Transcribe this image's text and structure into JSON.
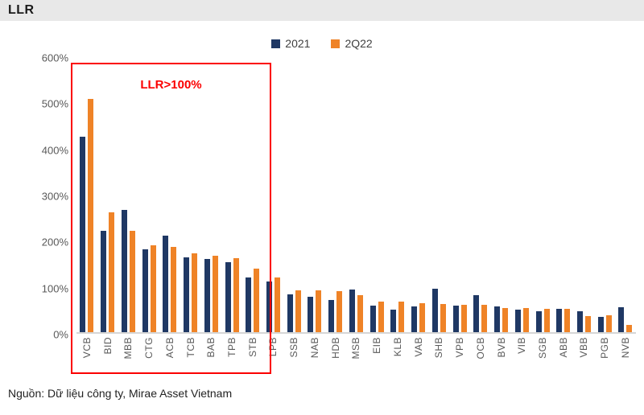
{
  "header": {
    "title": "LLR"
  },
  "source": {
    "text": "Nguồn: Dữ liệu công ty, Mirae Asset Vietnam"
  },
  "colors": {
    "series_2021": "#1f3864",
    "series_2q22": "#ef8327",
    "highlight_red": "#fb0000",
    "header_bg": "#e8e8e8",
    "axis_text": "#595959"
  },
  "chart_data": {
    "type": "bar",
    "title": "LLR",
    "categories": [
      "VCB",
      "BID",
      "MBB",
      "CTG",
      "ACB",
      "TCB",
      "BAB",
      "TPB",
      "STB",
      "LPB",
      "SSB",
      "NAB",
      "HDB",
      "MSB",
      "EIB",
      "KLB",
      "VAB",
      "SHB",
      "VPB",
      "OCB",
      "BVB",
      "VIB",
      "SGB",
      "ABB",
      "VBB",
      "PGB",
      "NVB"
    ],
    "series": [
      {
        "name": "2021",
        "color": "#1f3864",
        "values": [
          424,
          219,
          265,
          180,
          209,
          163,
          159,
          152,
          119,
          110,
          82,
          77,
          70,
          92,
          57,
          48,
          55,
          94,
          58,
          80,
          56,
          48,
          46,
          50,
          46,
          33,
          54
        ]
      },
      {
        "name": "2Q22",
        "color": "#ef8327",
        "values": [
          506,
          260,
          220,
          189,
          185,
          171,
          165,
          160,
          137,
          119,
          91,
          90,
          89,
          81,
          67,
          66,
          62,
          61,
          60,
          59,
          53,
          52,
          50,
          51,
          35,
          36,
          15
        ]
      }
    ],
    "xlabel": "",
    "ylabel": "",
    "ylim": [
      0,
      600
    ],
    "yticks": [
      "0%",
      "100%",
      "200%",
      "300%",
      "400%",
      "500%",
      "600%"
    ],
    "grid": false,
    "legend_position": "top-center",
    "annotation": {
      "text": "LLR>100%",
      "box_from_category": "VCB",
      "box_to_category": "STB"
    }
  }
}
